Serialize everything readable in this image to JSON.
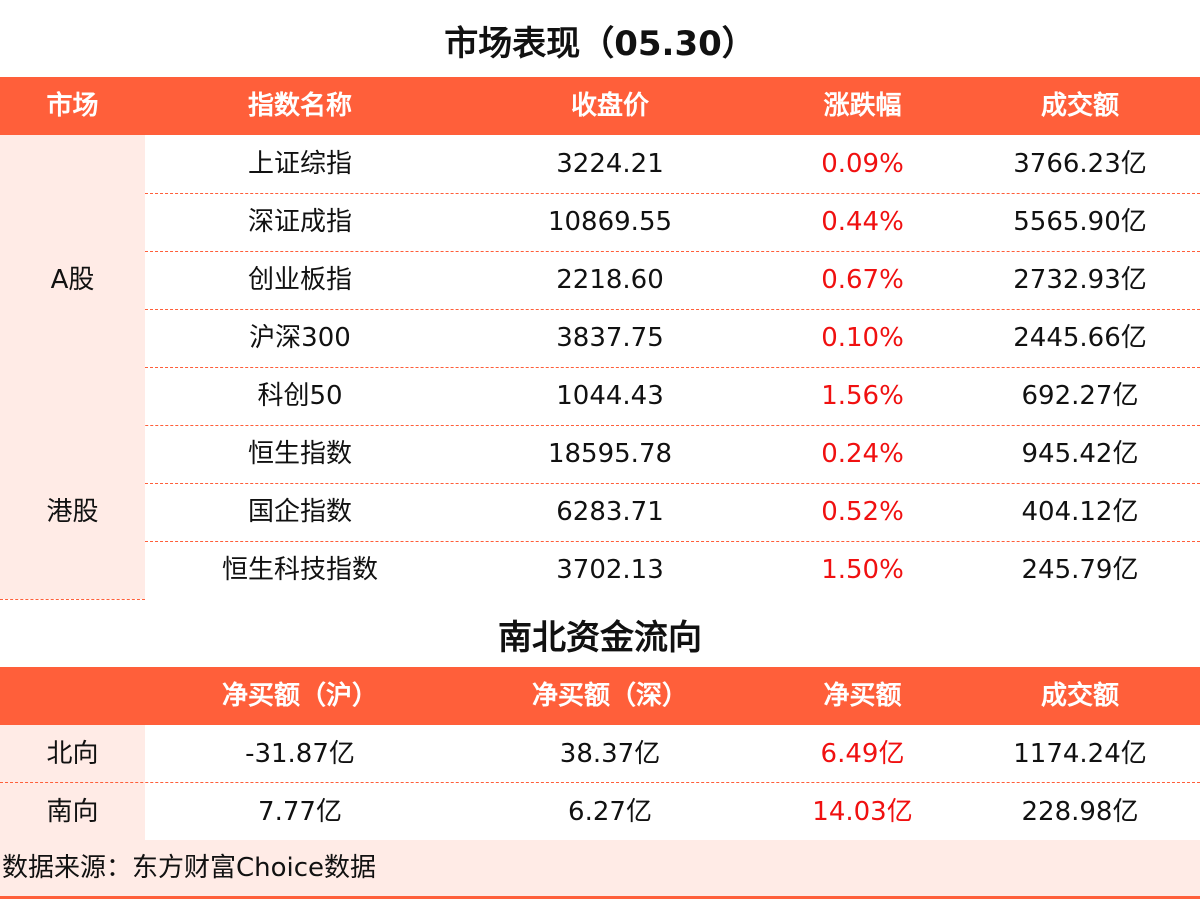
{
  "title1": "市场表现（05.30）",
  "headers1": [
    "市场",
    "指数名称",
    "收盘价",
    "涨跌幅",
    "成交额"
  ],
  "groups": [
    {
      "market": "A股",
      "rows": [
        {
          "name": "上证综指",
          "close": "3224.21",
          "change": "0.09%",
          "volume": "3766.23亿"
        },
        {
          "name": "深证成指",
          "close": "10869.55",
          "change": "0.44%",
          "volume": "5565.90亿"
        },
        {
          "name": "创业板指",
          "close": "2218.60",
          "change": "0.67%",
          "volume": "2732.93亿"
        },
        {
          "name": "沪深300",
          "close": "3837.75",
          "change": "0.10%",
          "volume": "2445.66亿"
        },
        {
          "name": "科创50",
          "close": "1044.43",
          "change": "1.56%",
          "volume": "692.27亿"
        }
      ]
    },
    {
      "market": "港股",
      "rows": [
        {
          "name": "恒生指数",
          "close": "18595.78",
          "change": "0.24%",
          "volume": "945.42亿"
        },
        {
          "name": "国企指数",
          "close": "6283.71",
          "change": "0.52%",
          "volume": "404.12亿"
        },
        {
          "name": "恒生科技指数",
          "close": "3702.13",
          "change": "1.50%",
          "volume": "245.79亿"
        }
      ]
    }
  ],
  "title2": "南北资金流向",
  "headers2": [
    "",
    "净买额（沪）",
    "净买额（深）",
    "净买额",
    "成交额"
  ],
  "flows": [
    {
      "dir": "北向",
      "sh": "-31.87亿",
      "sz": "38.37亿",
      "net": "6.49亿",
      "volume": "1174.24亿"
    },
    {
      "dir": "南向",
      "sh": "7.77亿",
      "sz": "6.27亿",
      "net": "14.03亿",
      "volume": "228.98亿"
    }
  ],
  "source": "数据来源：东方财富Choice数据",
  "colors": {
    "header": "#FF5F3A",
    "pink": "#FFEBE6",
    "positive": "#F01010"
  }
}
